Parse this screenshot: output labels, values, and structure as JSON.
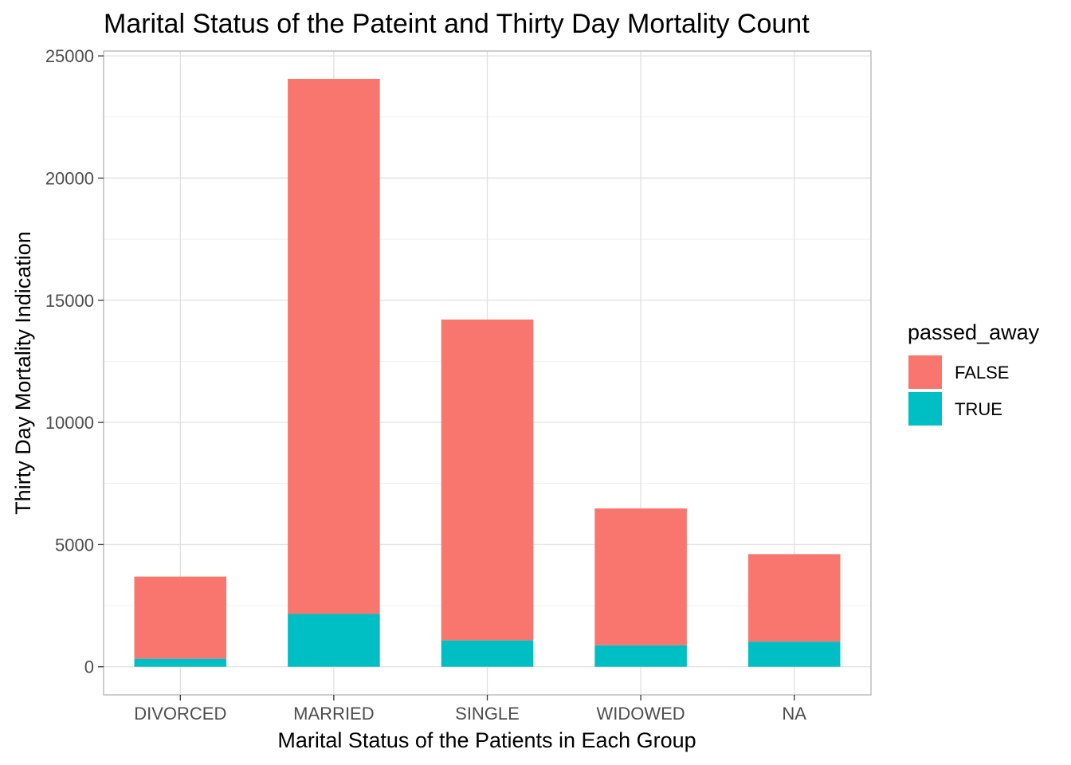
{
  "chart_data": {
    "type": "bar",
    "stacked": true,
    "title": "Marital Status of the Pateint and Thirty Day Mortality Count",
    "xlabel": "Marital Status of the Patients in Each Group",
    "ylabel": "Thirty Day Mortality Indication",
    "categories": [
      "DIVORCED",
      "MARRIED",
      "SINGLE",
      "WIDOWED",
      "NA"
    ],
    "series": [
      {
        "name": "FALSE",
        "color": "#F8766D",
        "values": [
          3360,
          21900,
          13130,
          5600,
          3580
        ]
      },
      {
        "name": "TRUE",
        "color": "#00BFC4",
        "values": [
          330,
          2160,
          1080,
          880,
          1030
        ]
      }
    ],
    "ylim": [
      -1150,
      25200
    ],
    "yticks": [
      0,
      5000,
      10000,
      15000,
      20000,
      25000
    ],
    "ytick_labels": [
      "0",
      "5000",
      "10000",
      "15000",
      "20000",
      "25000"
    ],
    "grid": true,
    "legend": {
      "title": "passed_away",
      "position": "right",
      "order": [
        "FALSE",
        "TRUE"
      ]
    }
  }
}
